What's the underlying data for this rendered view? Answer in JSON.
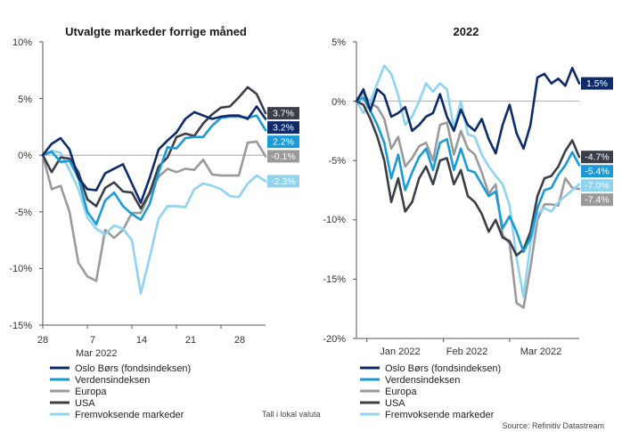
{
  "colors": {
    "Oslo Børs (fondsindeksen)": "#0d2a6b",
    "Verdensindeksen": "#1a9ad6",
    "Europa": "#9a9a9a",
    "USA": "#3a3f47",
    "Fremvoksende markeder": "#8fd3f2"
  },
  "legend": [
    "Oslo Børs (fondsindeksen)",
    "Verdensindeksen",
    "Europa",
    "USA",
    "Fremvoksende markeder"
  ],
  "note_left": "Tall i lokal valuta",
  "note_right": "Source: Refinitiv Datastream",
  "chart_data": [
    {
      "type": "line",
      "title": "Utvalgte markeder forrige måned",
      "x_tick_labels": [
        "28",
        "7",
        "14",
        "21",
        "28"
      ],
      "x_sublabel": "Mar 2022",
      "ylim": [
        -15,
        10
      ],
      "y_tick_labels": [
        "10%",
        "5%",
        "0%",
        "-5%",
        "-10%",
        "-15%"
      ],
      "x_unit": "trading day index from Feb 28, 2022",
      "x": [
        0,
        1,
        2,
        3,
        4,
        5,
        6,
        7,
        8,
        9,
        10,
        11,
        12,
        13,
        14,
        15,
        16,
        17,
        18,
        19,
        20,
        21,
        22,
        23,
        24,
        25
      ],
      "series": [
        {
          "name": "Oslo Børs (fondsindeksen)",
          "end_label": "3.2%",
          "values": [
            0,
            1,
            1.5,
            0.5,
            -2,
            -3,
            -3.1,
            -1.6,
            -1.2,
            -0.8,
            -2.5,
            -4.2,
            -2,
            0.5,
            1.3,
            2,
            3.2,
            3.8,
            3.5,
            3.2,
            3.4,
            3.5,
            3.5,
            3.2,
            4.3,
            3.2
          ]
        },
        {
          "name": "Verdensindeksen",
          "end_label": "2.2%",
          "values": [
            0,
            0.3,
            -0.6,
            -0.5,
            -2,
            -5,
            -6.1,
            -4,
            -3.3,
            -4.5,
            -5.2,
            -5.7,
            -4.3,
            -1.5,
            0.7,
            0.6,
            1.5,
            1.6,
            1.6,
            2.6,
            3.3,
            3.4,
            3.4,
            3.3,
            3.5,
            2.2
          ]
        },
        {
          "name": "Europa",
          "end_label": "-0.1%",
          "values": [
            0,
            -3,
            -2.7,
            -5,
            -9.5,
            -10.7,
            -11.1,
            -6.6,
            -7.3,
            -6.6,
            -5.1,
            -5.1,
            -3.4,
            -1.9,
            -1.2,
            -1.5,
            -1.2,
            -1.3,
            -0.4,
            -1.7,
            -1.8,
            -1.8,
            -1.8,
            1.1,
            1.2,
            -0.1
          ]
        },
        {
          "name": "USA",
          "end_label": "3.7%",
          "values": [
            0,
            -1.5,
            -0.2,
            -0.3,
            -1.5,
            -3.9,
            -4.5,
            -2.9,
            -2.4,
            -3.2,
            -3.3,
            -4.7,
            -3.3,
            -1,
            -0.2,
            1.6,
            1.9,
            1.7,
            2.8,
            3.6,
            4.2,
            4.3,
            5.1,
            6,
            5.4,
            3.7
          ]
        },
        {
          "name": "Fremvoksende markeder",
          "end_label": "-2.3%",
          "values": [
            0,
            0.4,
            0.2,
            -1.3,
            -3,
            -5.5,
            -6.5,
            -7,
            -6.2,
            -6.5,
            -7.5,
            -12.2,
            -9,
            -5.6,
            -4.5,
            -4.5,
            -4.6,
            -3,
            -2.5,
            -2.7,
            -3,
            -3.6,
            -3.7,
            -2.5,
            -1.8,
            -2.3
          ]
        }
      ]
    },
    {
      "type": "line",
      "title": "2022",
      "x_tick_labels": [
        "Jan 2022",
        "Feb 2022",
        "Mar 2022"
      ],
      "ylim": [
        -20,
        5
      ],
      "y_tick_labels": [
        "5%",
        "0%",
        "-5%",
        "-10%",
        "-15%",
        "-20%"
      ],
      "x_unit": "trading day index from Dec 31, 2021",
      "x": [
        0,
        2,
        4,
        6,
        8,
        10,
        12,
        14,
        16,
        18,
        20,
        22,
        24,
        26,
        28,
        30,
        32,
        34,
        36,
        38,
        40,
        42,
        44,
        46,
        48,
        50,
        52,
        54,
        56,
        58,
        60,
        62,
        64
      ],
      "series": [
        {
          "name": "Oslo Børs (fondsindeksen)",
          "end_label": "1.5%",
          "values": [
            0,
            1,
            -0.8,
            1,
            0.5,
            -1.3,
            -1,
            -0.5,
            -2.5,
            -2,
            -1.3,
            -1,
            0.6,
            -1.3,
            -2.5,
            -0.7,
            -2,
            -2.5,
            -1.5,
            -3.2,
            -4.4,
            -2,
            -0.3,
            -2.7,
            -4,
            -2,
            2,
            2.3,
            1.5,
            1.9,
            1.3,
            2.8,
            1.5
          ]
        },
        {
          "name": "Verdensindeksen",
          "end_label": "-5.4%",
          "values": [
            0,
            0.3,
            -0.8,
            -2,
            -3.5,
            -6.5,
            -4.5,
            -7.5,
            -6,
            -4.7,
            -4,
            -5.8,
            -3.5,
            -3.2,
            -5.8,
            -4,
            -5.8,
            -6,
            -7,
            -8,
            -7.6,
            -10.7,
            -9.7,
            -11,
            -12.7,
            -11.5,
            -9,
            -7.5,
            -7.3,
            -6.2,
            -5.4,
            -4.3,
            -5.4
          ]
        },
        {
          "name": "Europa",
          "end_label": "-7.4%",
          "values": [
            0,
            0.7,
            -0.2,
            -0.5,
            -1.5,
            -4,
            -3,
            -5.5,
            -4.8,
            -3.8,
            -3.5,
            -5,
            -2,
            -1.8,
            -4.5,
            -2.5,
            -4,
            -4.5,
            -6,
            -7.8,
            -7,
            -11.3,
            -12,
            -17,
            -17.4,
            -14,
            -10,
            -8.7,
            -8.7,
            -8.8,
            -6.5,
            -7.3,
            -7.4
          ]
        },
        {
          "name": "USA",
          "end_label": "-4.7%",
          "values": [
            0,
            -0.3,
            -1.5,
            -3,
            -5,
            -8.5,
            -6.5,
            -9.3,
            -8.5,
            -6.5,
            -5.5,
            -7,
            -5,
            -4.8,
            -7,
            -5.8,
            -8,
            -8.5,
            -9.5,
            -11,
            -10,
            -11.5,
            -11.8,
            -13,
            -12.5,
            -11,
            -8,
            -6.5,
            -6.3,
            -5.5,
            -4.2,
            -3.3,
            -4.7
          ]
        },
        {
          "name": "Fremvoksende markeder",
          "end_label": "-7.0%",
          "values": [
            0,
            -1,
            0,
            1.5,
            3,
            2.3,
            0.5,
            -2,
            -1.3,
            0,
            1.5,
            0.8,
            1.5,
            1,
            -2.3,
            0,
            -2.8,
            -3,
            -4.5,
            -5.5,
            -6.3,
            -7,
            -8.8,
            -13.2,
            -16.5,
            -12,
            -9.5,
            -9,
            -9.3,
            -8.5,
            -8,
            -7.5,
            -7
          ]
        }
      ]
    }
  ]
}
